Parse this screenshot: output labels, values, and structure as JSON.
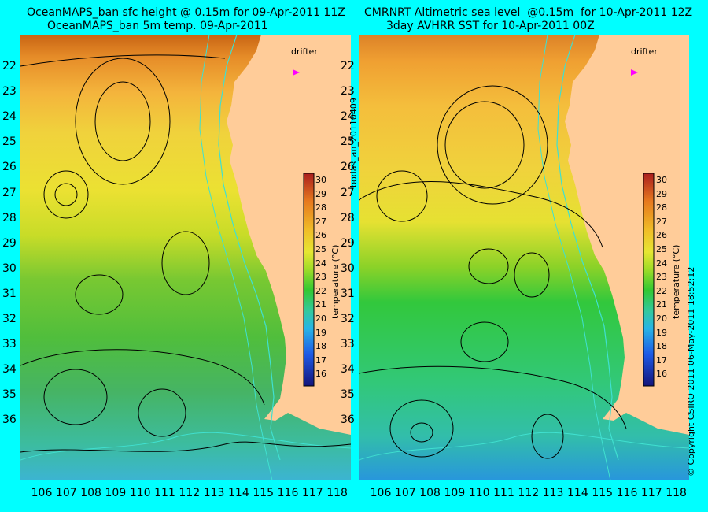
{
  "left_panel": {
    "title_line1": "OceanMAPS_ban sfc height @ 0.15m for 09-Apr-2011 11Z",
    "title_line2": "OceanMAPS_ban 5m temp. 09-Apr-2011",
    "drifter_label": "drifter",
    "colorbar_title": "temperature (°C)"
  },
  "right_panel": {
    "title_line1": "CMRNRT Altimetric sea level  @0.15m  for 10-Apr-2011 12Z",
    "title_line2": "3day AVHRR SST for 10-Apr-2011 00Z",
    "drifter_label": "drifter",
    "colorbar_title": "temperature (°C)"
  },
  "side_label": "bodas_an_20110409",
  "copyright": "© Copyright CSIRO 2011   06-May-2011 18:52:12",
  "latitudes": [
    "22",
    "23",
    "24",
    "25",
    "26",
    "27",
    "28",
    "29",
    "30",
    "31",
    "32",
    "33",
    "34",
    "35",
    "36"
  ],
  "longitudes": [
    "106",
    "107",
    "108",
    "109",
    "110",
    "111",
    "112",
    "113",
    "114",
    "115",
    "116",
    "117",
    "118"
  ],
  "colorbar_ticks": [
    "30",
    "29",
    "28",
    "27",
    "26",
    "25",
    "24",
    "23",
    "22",
    "21",
    "20",
    "19",
    "18",
    "17",
    "16"
  ],
  "colors": {
    "background": "#00ffff",
    "land": "#ffcc99",
    "contour": "#000000",
    "bathymetry": "#40e0d0",
    "drifter": "#ff00ff"
  }
}
